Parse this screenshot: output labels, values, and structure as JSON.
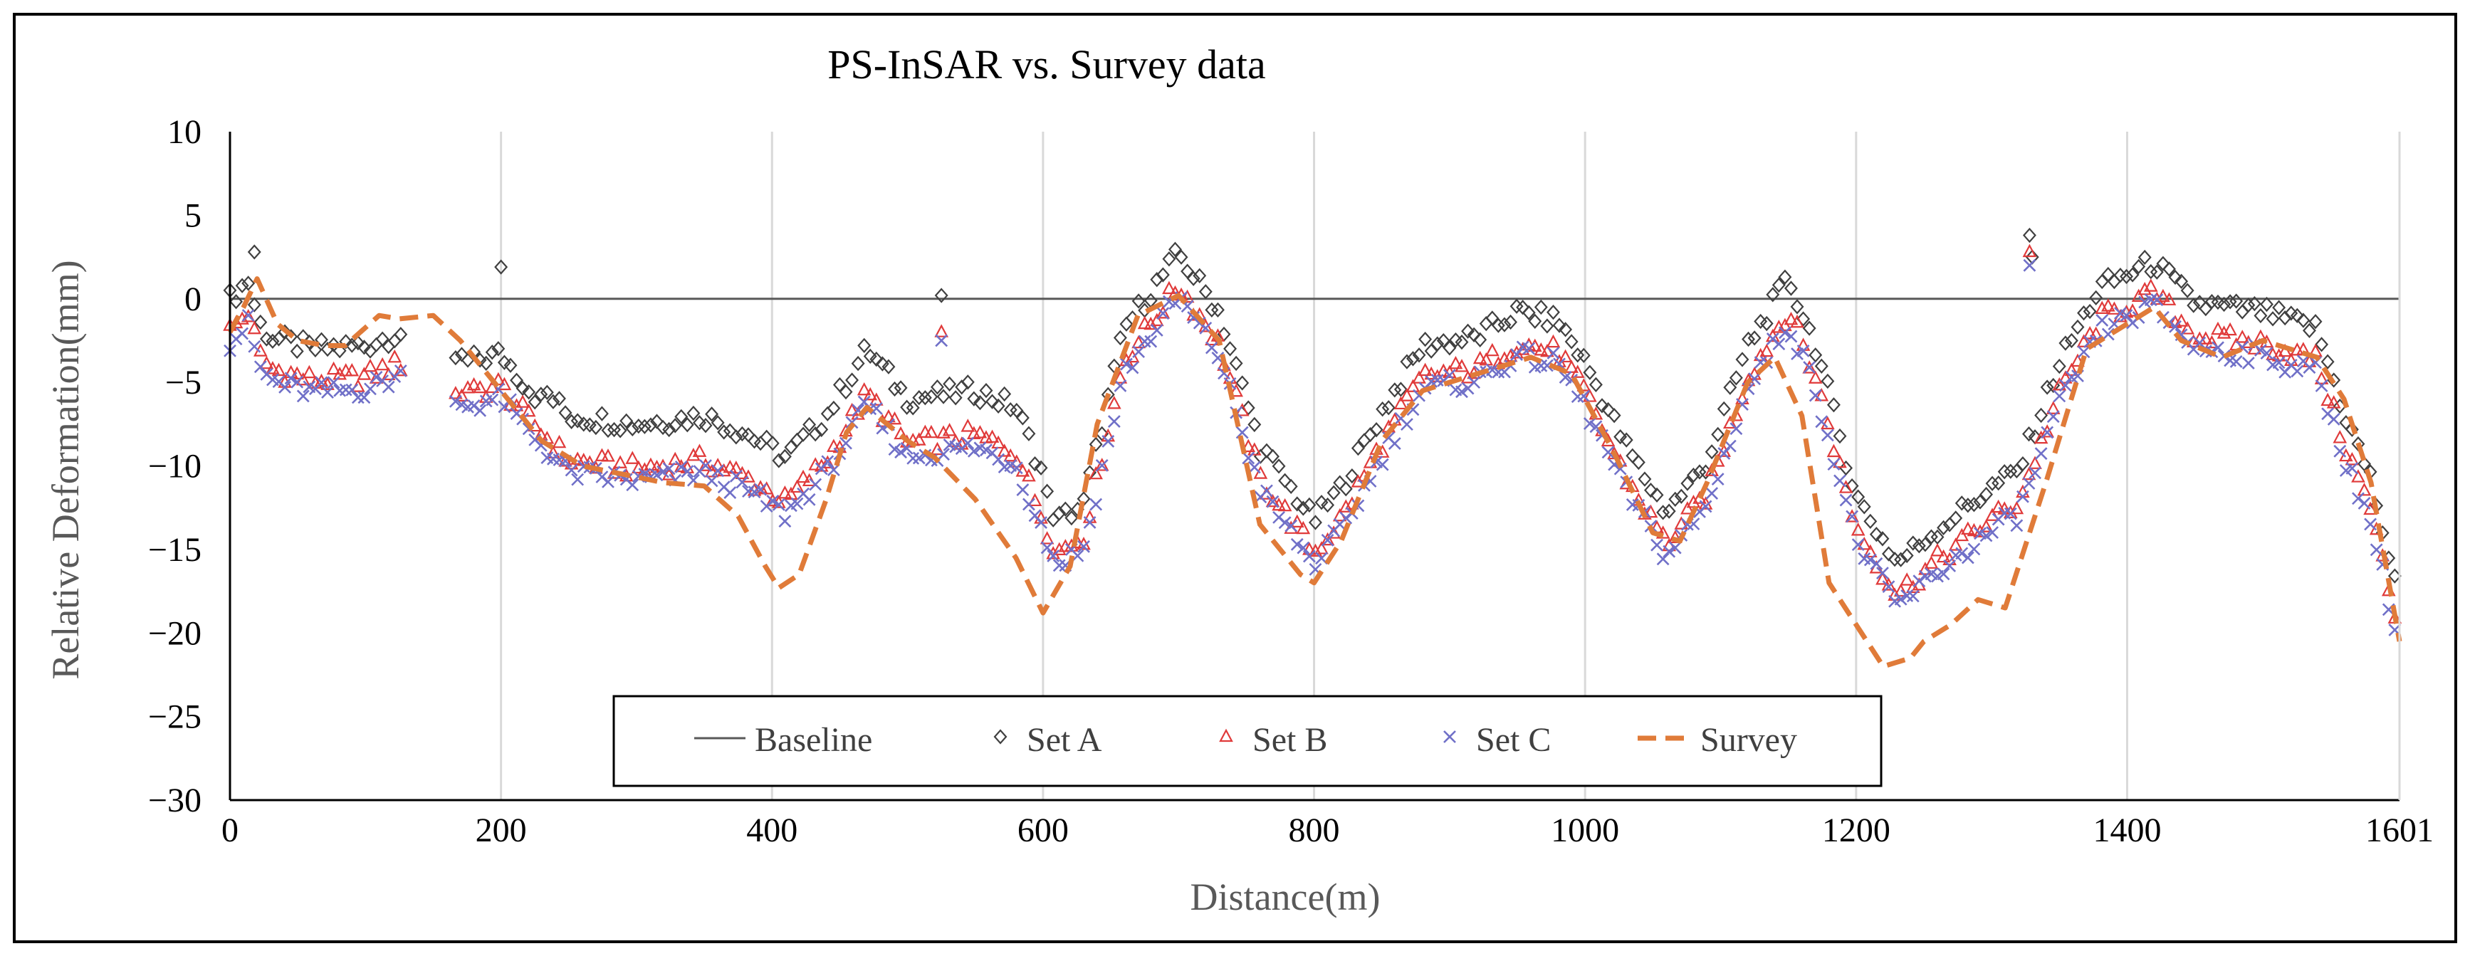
{
  "chart_data": {
    "type": "scatter",
    "title": "PS-InSAR vs. Survey data",
    "xlabel": "Distance(m)",
    "ylabel": "Relative Deformation(mm)",
    "xlim": [
      0,
      1601
    ],
    "ylim": [
      -30,
      10
    ],
    "x_ticks": [
      0,
      200,
      400,
      600,
      800,
      1000,
      1200,
      1400,
      1601
    ],
    "y_ticks": [
      10,
      5,
      0,
      -5,
      -10,
      -15,
      -20,
      -25,
      -30
    ],
    "x_tick_labels": [
      "0",
      "200",
      "400",
      "600",
      "800",
      "1000",
      "1200",
      "1400",
      "1601"
    ],
    "y_tick_labels": [
      "10",
      "5",
      "0",
      "−5",
      "−10",
      "−15",
      "−20",
      "−25",
      "−30"
    ],
    "grid": "vertical",
    "legend_position": "bottom-center",
    "series": [
      {
        "name": "Baseline",
        "kind": "line",
        "color": "#595959",
        "x": [
          0,
          1601
        ],
        "y": [
          0,
          0
        ]
      },
      {
        "name": "Set A",
        "kind": "marker-diamond",
        "color": "#404040",
        "offset": 2.2
      },
      {
        "name": "Set B",
        "kind": "marker-triangle",
        "color": "#e03a3a",
        "offset": 0.3
      },
      {
        "name": "Set C",
        "kind": "marker-x",
        "color": "#7070c8",
        "offset": -0.4
      },
      {
        "name": "Survey",
        "kind": "dashed-line",
        "color": "#e07b39"
      }
    ],
    "insar_profile": {
      "x": [
        0,
        15,
        20,
        30,
        60,
        100,
        125,
        175,
        200,
        220,
        250,
        300,
        350,
        380,
        410,
        440,
        470,
        500,
        550,
        580,
        610,
        630,
        660,
        700,
        730,
        760,
        800,
        820,
        850,
        880,
        920,
        950,
        980,
        1000,
        1030,
        1060,
        1090,
        1120,
        1150,
        1170,
        1200,
        1230,
        1260,
        1300,
        1320,
        1350,
        1380,
        1420,
        1450,
        1500,
        1540,
        1560,
        1580,
        1601
      ],
      "y": [
        -2.2,
        -1.0,
        -3.5,
        -4.5,
        -5.2,
        -5.0,
        -4.2,
        -6.0,
        -5.5,
        -7.5,
        -10.0,
        -10.5,
        -10.0,
        -11.0,
        -12.5,
        -10.0,
        -6.0,
        -9.0,
        -8.5,
        -9.5,
        -15.5,
        -14.5,
        -4.0,
        0.5,
        -3.0,
        -11.0,
        -15.5,
        -13.5,
        -9.0,
        -5.0,
        -4.5,
        -3.0,
        -3.5,
        -6.0,
        -11.0,
        -15.0,
        -12.0,
        -5.0,
        -1.0,
        -5.0,
        -14.0,
        -18.0,
        -16.0,
        -13.5,
        -12.5,
        -6.0,
        -1.5,
        0.0,
        -2.5,
        -3.0,
        -4.0,
        -9.0,
        -13.0,
        -20.5
      ]
    },
    "survey": {
      "x": [
        0,
        10,
        20,
        35,
        50,
        70,
        85,
        110,
        125,
        150,
        170,
        190,
        210,
        230,
        260,
        290,
        320,
        350,
        375,
        395,
        405,
        420,
        440,
        455,
        470,
        500,
        520,
        550,
        580,
        600,
        620,
        640,
        670,
        700,
        730,
        760,
        790,
        800,
        820,
        850,
        880,
        920,
        960,
        990,
        1020,
        1050,
        1070,
        1090,
        1120,
        1140,
        1160,
        1180,
        1200,
        1220,
        1240,
        1250,
        1270,
        1290,
        1310,
        1320,
        1340,
        1370,
        1400,
        1420,
        1440,
        1470,
        1500,
        1540,
        1560,
        1580,
        1601
      ],
      "y": [
        -2.0,
        -0.5,
        1.2,
        -1.5,
        -2.5,
        -2.8,
        -2.8,
        -1.0,
        -1.2,
        -1.0,
        -2.5,
        -4.5,
        -6.5,
        -8.5,
        -10.0,
        -10.5,
        -11.0,
        -11.2,
        -13.0,
        -16.0,
        -17.3,
        -16.5,
        -12.0,
        -8.0,
        -6.5,
        -8.5,
        -9.5,
        -12.0,
        -15.5,
        -18.8,
        -16.0,
        -7.5,
        -1.0,
        0.2,
        -2.5,
        -13.5,
        -16.5,
        -17.0,
        -14.5,
        -8.5,
        -5.5,
        -4.5,
        -3.5,
        -4.5,
        -9.0,
        -14.0,
        -14.5,
        -11.0,
        -5.0,
        -3.5,
        -7.0,
        -17.0,
        -19.5,
        -22.0,
        -21.5,
        -20.5,
        -19.5,
        -18.0,
        -18.5,
        -16.0,
        -11.0,
        -3.0,
        -1.5,
        -0.5,
        -2.5,
        -3.5,
        -2.5,
        -3.5,
        -6.0,
        -11.0,
        -20.5
      ]
    },
    "outliers": [
      {
        "series": "Set A",
        "x": 18,
        "y": 2.8
      },
      {
        "series": "Set A",
        "x": 200,
        "y": 1.9
      },
      {
        "series": "Set A",
        "x": 525,
        "y": 0.2
      },
      {
        "series": "Set A",
        "x": 1328,
        "y": 3.8
      },
      {
        "series": "Set A",
        "x": 1330,
        "y": 2.5
      },
      {
        "series": "Set B",
        "x": 1328,
        "y": 2.8
      },
      {
        "series": "Set C",
        "x": 1328,
        "y": 2.0
      },
      {
        "series": "Set B",
        "x": 525,
        "y": -2.0
      },
      {
        "series": "Set C",
        "x": 525,
        "y": -2.5
      }
    ]
  }
}
